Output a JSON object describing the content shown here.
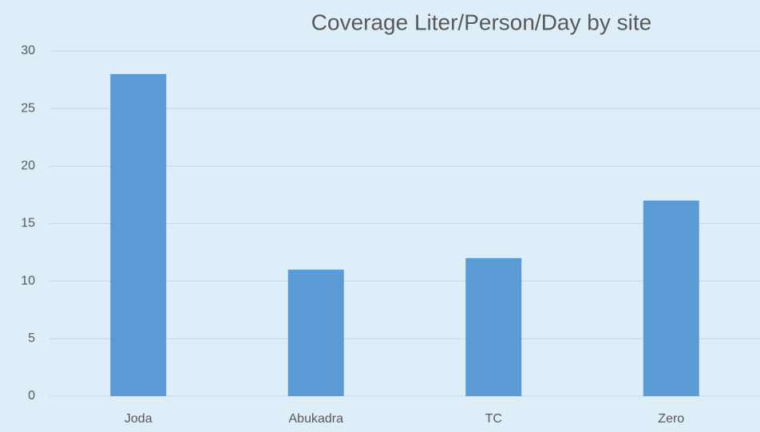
{
  "chart_data": {
    "type": "bar",
    "title": "Coverage Liter/Person/Day by site",
    "categories": [
      "Joda",
      "Abukadra",
      "TC",
      "Zero"
    ],
    "values": [
      28,
      11,
      12,
      17
    ],
    "color": "#5b9bd5",
    "ylim": [
      0,
      30
    ],
    "yticks": [
      0,
      5,
      10,
      15,
      20,
      25,
      30
    ],
    "grid": true
  }
}
